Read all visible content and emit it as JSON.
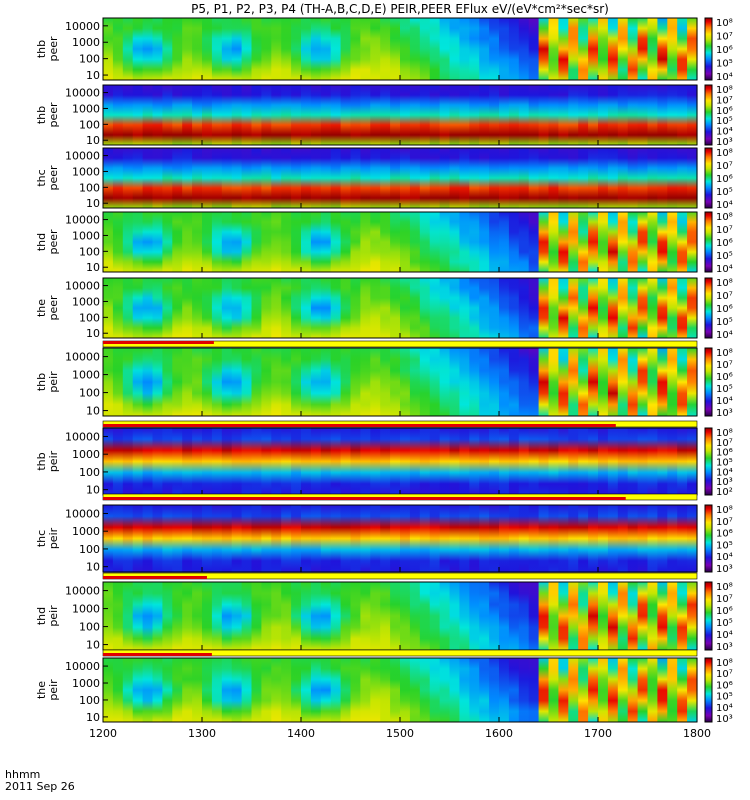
{
  "chart_data": {
    "type": "heatmap",
    "title": "P5, P1, P2, P3, P4 (TH-A,B,C,D,E) PEIR,PEER EFlux eV/(eV*cm²*sec*sr)",
    "xlabel": "hhmm",
    "date_label": "2011 Sep 26",
    "x_range": [
      1200,
      1800
    ],
    "x_ticks": [
      "1200",
      "1300",
      "1400",
      "1500",
      "1600",
      "1700",
      "1800"
    ],
    "y_scale": "log",
    "y_ticks": [
      "10",
      "100",
      "1000",
      "10000"
    ],
    "colormap": "rainbow (purple-blue-cyan-green-yellow-red-darkred)",
    "panels": [
      {
        "probe": "thb",
        "species": "peer",
        "ylabel": "thb peer",
        "yrange": [
          5,
          30000
        ],
        "cbar_ticks": [
          "10⁴",
          "10⁵",
          "10⁶",
          "10⁷",
          "10⁸"
        ]
      },
      {
        "probe": "thb",
        "species": "peer",
        "ylabel": "thb peer",
        "yrange": [
          5,
          30000
        ],
        "cbar_ticks": [
          "10³",
          "10⁴",
          "10⁵",
          "10⁶",
          "10⁷",
          "10⁸"
        ]
      },
      {
        "probe": "thc",
        "species": "peer",
        "ylabel": "thc peer",
        "yrange": [
          5,
          30000
        ],
        "cbar_ticks": [
          "10⁴",
          "10⁵",
          "10⁶",
          "10⁷",
          "10⁸"
        ]
      },
      {
        "probe": "thd",
        "species": "peer",
        "ylabel": "thd peer",
        "yrange": [
          5,
          30000
        ],
        "cbar_ticks": [
          "10⁴",
          "10⁵",
          "10⁶",
          "10⁷",
          "10⁸"
        ]
      },
      {
        "probe": "the",
        "species": "peer",
        "ylabel": "the peer",
        "yrange": [
          5,
          30000
        ],
        "cbar_ticks": [
          "10⁴",
          "10⁵",
          "10⁶",
          "10⁷",
          "10⁸"
        ]
      },
      {
        "probe": "thb",
        "species": "peir",
        "ylabel": "thb peir",
        "yrange": [
          5,
          30000
        ],
        "cbar_ticks": [
          "10³",
          "10⁴",
          "10⁵",
          "10⁶",
          "10⁷",
          "10⁸"
        ],
        "mode_bar": {
          "red_end": 1312,
          "red_frac": [
            0,
            0.5
          ]
        }
      },
      {
        "probe": "thb",
        "species": "peir",
        "ylabel": "thb peir",
        "yrange": [
          5,
          30000
        ],
        "cbar_ticks": [
          "10²",
          "10³",
          "10⁴",
          "10⁵",
          "10⁶",
          "10⁷",
          "10⁸"
        ],
        "mode_bar": {
          "red_end": 1718,
          "red_frac": [
            0.5,
            1
          ]
        }
      },
      {
        "probe": "thc",
        "species": "peir",
        "ylabel": "thc peir",
        "yrange": [
          5,
          30000
        ],
        "cbar_ticks": [
          "10³",
          "10⁴",
          "10⁵",
          "10⁶",
          "10⁷",
          "10⁸"
        ],
        "mode_bar": {
          "red_end": 1728,
          "red_frac": [
            0.5,
            1
          ]
        }
      },
      {
        "probe": "thd",
        "species": "peir",
        "ylabel": "thd peir",
        "yrange": [
          5,
          30000
        ],
        "cbar_ticks": [
          "10³",
          "10⁴",
          "10⁵",
          "10⁶",
          "10⁷",
          "10⁸"
        ],
        "mode_bar": {
          "red_end": 1305,
          "red_frac": [
            0.5,
            1
          ]
        }
      },
      {
        "probe": "the",
        "species": "peir",
        "ylabel": "the peir",
        "yrange": [
          5,
          30000
        ],
        "cbar_ticks": [
          "10³",
          "10⁴",
          "10⁵",
          "10⁶",
          "10⁷",
          "10⁸"
        ],
        "mode_bar": {
          "red_end": 1310,
          "red_frac": [
            0.5,
            1
          ]
        }
      }
    ]
  }
}
